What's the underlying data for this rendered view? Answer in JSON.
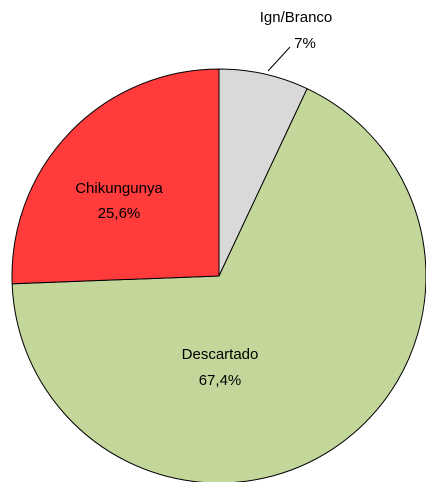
{
  "chart_data": {
    "type": "pie",
    "categories": [
      "Ign/Branco",
      "Descartado",
      "Chikungunya"
    ],
    "values": [
      7,
      67.4,
      25.6
    ],
    "value_labels": [
      "7%",
      "67,4%",
      "25,6%"
    ],
    "colors": [
      "#d9d9d9",
      "#c4d79b",
      "#ff3b3b"
    ]
  }
}
